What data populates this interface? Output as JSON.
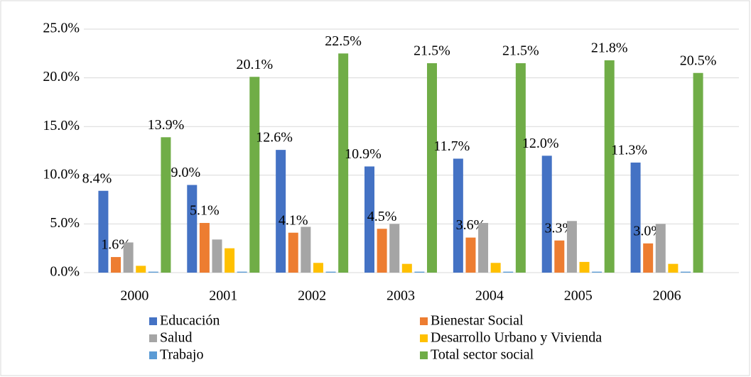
{
  "chart_data": {
    "type": "bar",
    "categories": [
      "2000",
      "2001",
      "2002",
      "2003",
      "2004",
      "2005",
      "2006"
    ],
    "series": [
      {
        "name": "Educación",
        "color": "#4472c4",
        "values": [
          8.4,
          9.0,
          12.6,
          10.9,
          11.7,
          12.0,
          11.3
        ],
        "value_labels": [
          "8.4%",
          "9.0%",
          "12.6%",
          "10.9%",
          "11.7%",
          "12.0%",
          "11.3%"
        ]
      },
      {
        "name": "Bienestar Social",
        "color": "#ed7d31",
        "values": [
          1.6,
          5.1,
          4.1,
          4.5,
          3.6,
          3.3,
          3.0
        ],
        "value_labels": [
          "1.6%",
          "5.1%",
          "4.1%",
          "4.5%",
          "3.6%",
          "3.3%",
          "3.0%"
        ]
      },
      {
        "name": "Salud",
        "color": "#a5a5a5",
        "values": [
          3.1,
          3.4,
          4.7,
          5.0,
          5.1,
          5.3,
          5.0
        ]
      },
      {
        "name": "Desarrollo Urbano y Vivienda",
        "color": "#ffc000",
        "values": [
          0.7,
          2.5,
          1.0,
          0.9,
          1.0,
          1.1,
          0.9
        ]
      },
      {
        "name": "Trabajo",
        "color": "#5b9bd5",
        "values": [
          0.1,
          0.1,
          0.1,
          0.1,
          0.1,
          0.1,
          0.1
        ]
      },
      {
        "name": "Total sector social",
        "color": "#70ad47",
        "values": [
          13.9,
          20.1,
          22.5,
          21.5,
          21.5,
          21.8,
          20.5
        ],
        "value_labels": [
          "13.9%",
          "20.1%",
          "22.5%",
          "21.5%",
          "21.5%",
          "21.8%",
          "20.5%"
        ]
      }
    ],
    "ylim": [
      0,
      25
    ],
    "yticks": [
      {
        "value": 0,
        "label": "0.0%"
      },
      {
        "value": 5,
        "label": "5.0%"
      },
      {
        "value": 10,
        "label": "10.0%"
      },
      {
        "value": 15,
        "label": "15.0%"
      },
      {
        "value": 20,
        "label": "20.0%"
      },
      {
        "value": 25,
        "label": "25.0%"
      }
    ],
    "grid": true,
    "legend": "bottom"
  }
}
